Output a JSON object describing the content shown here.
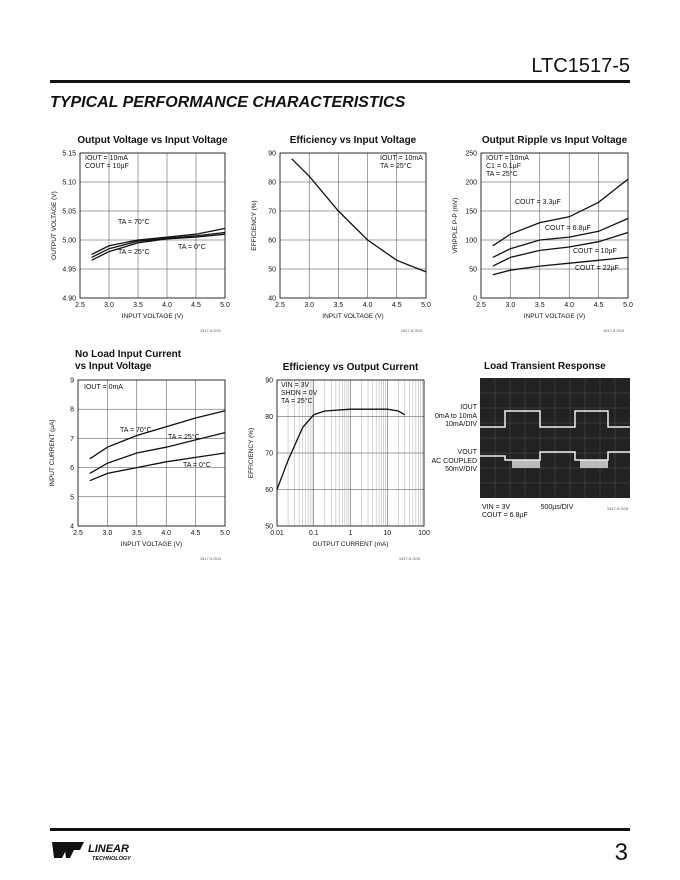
{
  "header": {
    "part": "LTC1517-5"
  },
  "section_title": "TYPICAL PERFORMANCE CHARACTERISTICS",
  "chart_data": [
    {
      "type": "line",
      "title": "Output Voltage vs Input Voltage",
      "xlabel": "INPUT VOLTAGE (V)",
      "ylabel": "OUTPUT VOLTAGE (V)",
      "xlim": [
        2.5,
        5.0
      ],
      "xticks": [
        2.5,
        {
          "value": 3,
          "label": "3.0"
        },
        3.5,
        {
          "value": 4,
          "label": "4.0"
        },
        4.5,
        {
          "value": 5,
          "label": "5.0"
        }
      ],
      "ylim": [
        4.9,
        5.15
      ],
      "yticks": [
        {
          "value": 4.9,
          "label": "4.90"
        },
        4.95,
        {
          "value": 5,
          "label": "5.00"
        },
        5.05,
        {
          "value": 5.1,
          "label": "5.10"
        },
        5.15
      ],
      "grid": true,
      "annotations": [
        "IOUT = 10mA",
        "COUT = 10µF"
      ],
      "code": "1517-5 G01",
      "x": [
        2.7,
        3.0,
        3.5,
        4.0,
        4.5,
        5.0
      ],
      "series": [
        {
          "name": "TA = 70°C",
          "color": "#111111",
          "values": [
            4.975,
            4.99,
            5.0,
            5.005,
            5.01,
            5.02
          ]
        },
        {
          "name": "TA = 25°C",
          "color": "#111111",
          "values": [
            4.97,
            4.985,
            4.998,
            5.003,
            5.007,
            5.013
          ]
        },
        {
          "name": "TA = 0°C",
          "color": "#111111",
          "values": [
            4.965,
            4.98,
            4.995,
            5.002,
            5.005,
            5.01
          ]
        }
      ]
    },
    {
      "type": "line",
      "title": "Efficiency vs Input Voltage",
      "xlabel": "INPUT VOLTAGE (V)",
      "ylabel": "EFFICIENCY (%)",
      "xlim": [
        2.5,
        5.0
      ],
      "xticks": [
        2.5,
        {
          "value": 3,
          "label": "3.0"
        },
        3.5,
        {
          "value": 4,
          "label": "4.0"
        },
        4.5,
        {
          "value": 5,
          "label": "5.0"
        }
      ],
      "ylim": [
        40,
        90
      ],
      "yticks": [
        40,
        50,
        60,
        70,
        80,
        90
      ],
      "grid": true,
      "annotations": [
        "IOUT = 10mA",
        "TA = 25°C"
      ],
      "code": "1517-5 G02",
      "x": [
        2.7,
        3.0,
        3.5,
        4.0,
        4.5,
        5.0
      ],
      "series": [
        {
          "color": "#111111",
          "values": [
            88,
            82,
            70,
            60,
            53,
            49
          ]
        }
      ]
    },
    {
      "type": "line",
      "title": "Output Ripple vs Input Voltage",
      "xlabel": "INPUT VOLTAGE (V)",
      "ylabel": "VRIPPLE P-P (mV)",
      "xlim": [
        2.5,
        5.0
      ],
      "xticks": [
        2.5,
        {
          "value": 3,
          "label": "3.0"
        },
        3.5,
        {
          "value": 4,
          "label": "4.0"
        },
        4.5,
        {
          "value": 5,
          "label": "5.0"
        }
      ],
      "ylim": [
        0,
        250
      ],
      "yticks": [
        0,
        50,
        100,
        150,
        200,
        250
      ],
      "grid": true,
      "annotations": [
        "IOUT = 10mA",
        "C1 = 0.1µF",
        "TA = 25°C"
      ],
      "code": "1517-5 G03",
      "x": [
        2.7,
        3.0,
        3.5,
        4.0,
        4.5,
        5.0
      ],
      "series": [
        {
          "name": "COUT = 3.3µF",
          "color": "#111111",
          "values": [
            90,
            110,
            130,
            140,
            165,
            205
          ]
        },
        {
          "name": "COUT = 6.8µF",
          "color": "#111111",
          "values": [
            70,
            85,
            100,
            105,
            115,
            137
          ]
        },
        {
          "name": "COUT = 10µF",
          "color": "#111111",
          "values": [
            55,
            70,
            82,
            88,
            97,
            113
          ]
        },
        {
          "name": "COUT = 22µF",
          "color": "#111111",
          "values": [
            40,
            48,
            55,
            60,
            65,
            70
          ]
        }
      ]
    },
    {
      "type": "line",
      "title": [
        "No Load Input Current",
        "vs Input Voltage"
      ],
      "xlabel": "INPUT VOLTAGE (V)",
      "ylabel": "INPUT CURRENT (µA)",
      "xlim": [
        2.5,
        5.0
      ],
      "xticks": [
        2.5,
        {
          "value": 3,
          "label": "3.0"
        },
        3.5,
        {
          "value": 4,
          "label": "4.0"
        },
        4.5,
        {
          "value": 5,
          "label": "5.0"
        }
      ],
      "ylim": [
        4,
        9
      ],
      "yticks": [
        4,
        5,
        6,
        7,
        8,
        9
      ],
      "grid": true,
      "annotations": [
        "IOUT = 0mA"
      ],
      "code": "1517-5 G04",
      "x": [
        2.7,
        3.0,
        3.5,
        4.0,
        4.5,
        5.0
      ],
      "series": [
        {
          "name": "TA = 70°C",
          "color": "#111111",
          "values": [
            6.3,
            6.7,
            7.1,
            7.4,
            7.7,
            7.95
          ]
        },
        {
          "name": "TA = 25°C",
          "color": "#111111",
          "values": [
            5.8,
            6.15,
            6.5,
            6.7,
            6.95,
            7.2
          ]
        },
        {
          "name": "TA = 0°C",
          "color": "#111111",
          "values": [
            5.55,
            5.8,
            6.0,
            6.2,
            6.35,
            6.5
          ]
        }
      ]
    },
    {
      "type": "line",
      "title": "Efficiency vs Output Current",
      "xlabel": "OUTPUT CURRENT (mA)",
      "ylabel": "EFFICIENCY (%)",
      "xscale": "log",
      "xlim": [
        0.01,
        100
      ],
      "xticks": [
        0.01,
        0.1,
        1,
        10,
        100
      ],
      "ylim": [
        50,
        90
      ],
      "yticks": [
        50,
        60,
        70,
        80,
        90
      ],
      "grid": true,
      "annotations": [
        "VIN = 3V",
        "SHDN = 0V",
        "TA = 25°C"
      ],
      "code": "1517-5 G05",
      "x": [
        0.01,
        0.02,
        0.05,
        0.1,
        0.2,
        1,
        10,
        20,
        30
      ],
      "series": [
        {
          "color": "#111111",
          "values": [
            60,
            68,
            77,
            80.5,
            81.5,
            82,
            82,
            81.5,
            80.5
          ]
        }
      ]
    }
  ],
  "scope": {
    "title": "Load Transient Response",
    "code": "1517-5 G06",
    "left_labels": [
      "IOUT",
      "0mA to 10mA",
      "10mA/DIV",
      "VOUT",
      "AC COUPLED",
      "50mV/DIV"
    ],
    "bottom_labels": [
      "VIN = 3V",
      "COUT = 6.8µF"
    ],
    "timebase": "500µs/DIV"
  },
  "footer": {
    "logo": [
      "LINEAR",
      "TECHNOLOGY"
    ],
    "page": "3"
  }
}
